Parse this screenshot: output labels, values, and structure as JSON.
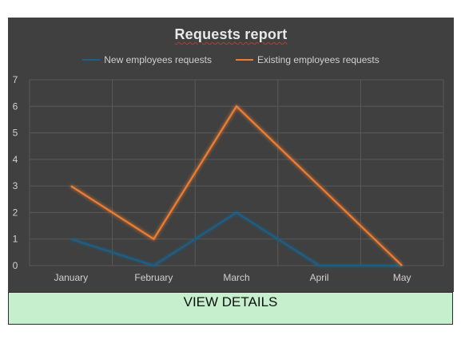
{
  "chart_data": {
    "type": "line",
    "title": "Requests report",
    "xlabel": "",
    "ylabel": "",
    "categories": [
      "January",
      "February",
      "March",
      "April",
      "May"
    ],
    "ylim": [
      0,
      7
    ],
    "yticks": [
      0,
      1,
      2,
      3,
      4,
      5,
      6,
      7
    ],
    "grid": true,
    "legend_position": "top",
    "series": [
      {
        "name": "New employees requests",
        "color": "#1f5f85",
        "values": [
          1,
          0,
          2,
          0,
          0
        ]
      },
      {
        "name": "Existing employees requests",
        "color": "#ed7d31",
        "values": [
          3,
          1,
          6,
          3,
          0
        ]
      }
    ]
  },
  "button": {
    "label": "VIEW DETAILS"
  }
}
